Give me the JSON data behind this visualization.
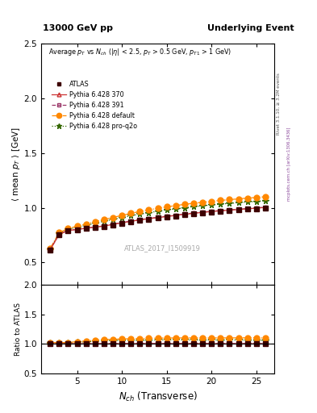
{
  "title_left": "13000 GeV pp",
  "title_right": "Underlying Event",
  "xlabel": "$N_{ch}$ (Transverse)",
  "ylabel_main": "$\\langle$ mean $p_T$ $\\rangle$ [GeV]",
  "ylabel_ratio": "Ratio to ATLAS",
  "annotation": "Average $p_T$ vs $N_{ch}$ ($|\\eta|$ < 2.5, $p_T$ > 0.5 GeV, $p_{T1}$ > 1 GeV)",
  "watermark": "ATLAS_2017_I1509919",
  "right_label_top": "Rivet 3.1.10, ≥ 3.2M events",
  "right_label_bot": "mcplots.cern.ch [arXiv:1306.3436]",
  "ylim_main": [
    0.3,
    2.5
  ],
  "ylim_ratio": [
    0.5,
    2.0
  ],
  "yticks_main": [
    0.5,
    1.0,
    1.5,
    2.0,
    2.5
  ],
  "yticks_ratio": [
    0.5,
    1.0,
    1.5,
    2.0
  ],
  "x_atlas": [
    2,
    3,
    4,
    5,
    6,
    7,
    8,
    9,
    10,
    11,
    12,
    13,
    14,
    15,
    16,
    17,
    18,
    19,
    20,
    21,
    22,
    23,
    24,
    25,
    26
  ],
  "y_atlas": [
    0.615,
    0.755,
    0.79,
    0.8,
    0.81,
    0.82,
    0.83,
    0.845,
    0.858,
    0.872,
    0.885,
    0.896,
    0.906,
    0.916,
    0.926,
    0.936,
    0.945,
    0.954,
    0.961,
    0.968,
    0.974,
    0.98,
    0.986,
    0.992,
    1.0
  ],
  "x_370": [
    2,
    3,
    4,
    5,
    6,
    7,
    8,
    9,
    10,
    11,
    12,
    13,
    14,
    15,
    16,
    17,
    18,
    19,
    20,
    21,
    22,
    23,
    24,
    25,
    26
  ],
  "y_370": [
    0.617,
    0.757,
    0.792,
    0.802,
    0.813,
    0.823,
    0.833,
    0.848,
    0.862,
    0.876,
    0.889,
    0.9,
    0.91,
    0.92,
    0.93,
    0.94,
    0.949,
    0.958,
    0.965,
    0.972,
    0.978,
    0.984,
    0.99,
    0.996,
    1.003
  ],
  "x_391": [
    2,
    3,
    4,
    5,
    6,
    7,
    8,
    9,
    10,
    11,
    12,
    13,
    14,
    15,
    16,
    17,
    18,
    19,
    20,
    21,
    22,
    23,
    24,
    25,
    26
  ],
  "y_391": [
    0.618,
    0.758,
    0.793,
    0.803,
    0.814,
    0.824,
    0.835,
    0.85,
    0.865,
    0.879,
    0.892,
    0.903,
    0.913,
    0.923,
    0.933,
    0.943,
    0.952,
    0.961,
    0.968,
    0.975,
    0.981,
    0.987,
    0.993,
    0.999,
    1.006
  ],
  "x_default": [
    2,
    3,
    4,
    5,
    6,
    7,
    8,
    9,
    10,
    11,
    12,
    13,
    14,
    15,
    16,
    17,
    18,
    19,
    20,
    21,
    22,
    23,
    24,
    25,
    26
  ],
  "y_default": [
    0.63,
    0.773,
    0.81,
    0.832,
    0.852,
    0.872,
    0.892,
    0.912,
    0.93,
    0.949,
    0.966,
    0.981,
    0.995,
    1.008,
    1.02,
    1.031,
    1.041,
    1.05,
    1.059,
    1.067,
    1.074,
    1.081,
    1.088,
    1.094,
    1.1
  ],
  "x_proq2o": [
    2,
    3,
    4,
    5,
    6,
    7,
    8,
    9,
    10,
    11,
    12,
    13,
    14,
    15,
    16,
    17,
    18,
    19,
    20,
    21,
    22,
    23,
    24,
    25,
    26
  ],
  "y_proq2o": [
    0.623,
    0.765,
    0.802,
    0.822,
    0.84,
    0.858,
    0.876,
    0.894,
    0.91,
    0.927,
    0.942,
    0.955,
    0.968,
    0.98,
    0.99,
    1.0,
    1.009,
    1.018,
    1.026,
    1.033,
    1.04,
    1.046,
    1.052,
    1.058,
    1.064
  ],
  "color_atlas": "#3d0000",
  "color_370": "#cc3333",
  "color_391": "#993366",
  "color_default": "#ff8800",
  "color_proq2o": "#336600",
  "xlim": [
    1,
    27
  ]
}
